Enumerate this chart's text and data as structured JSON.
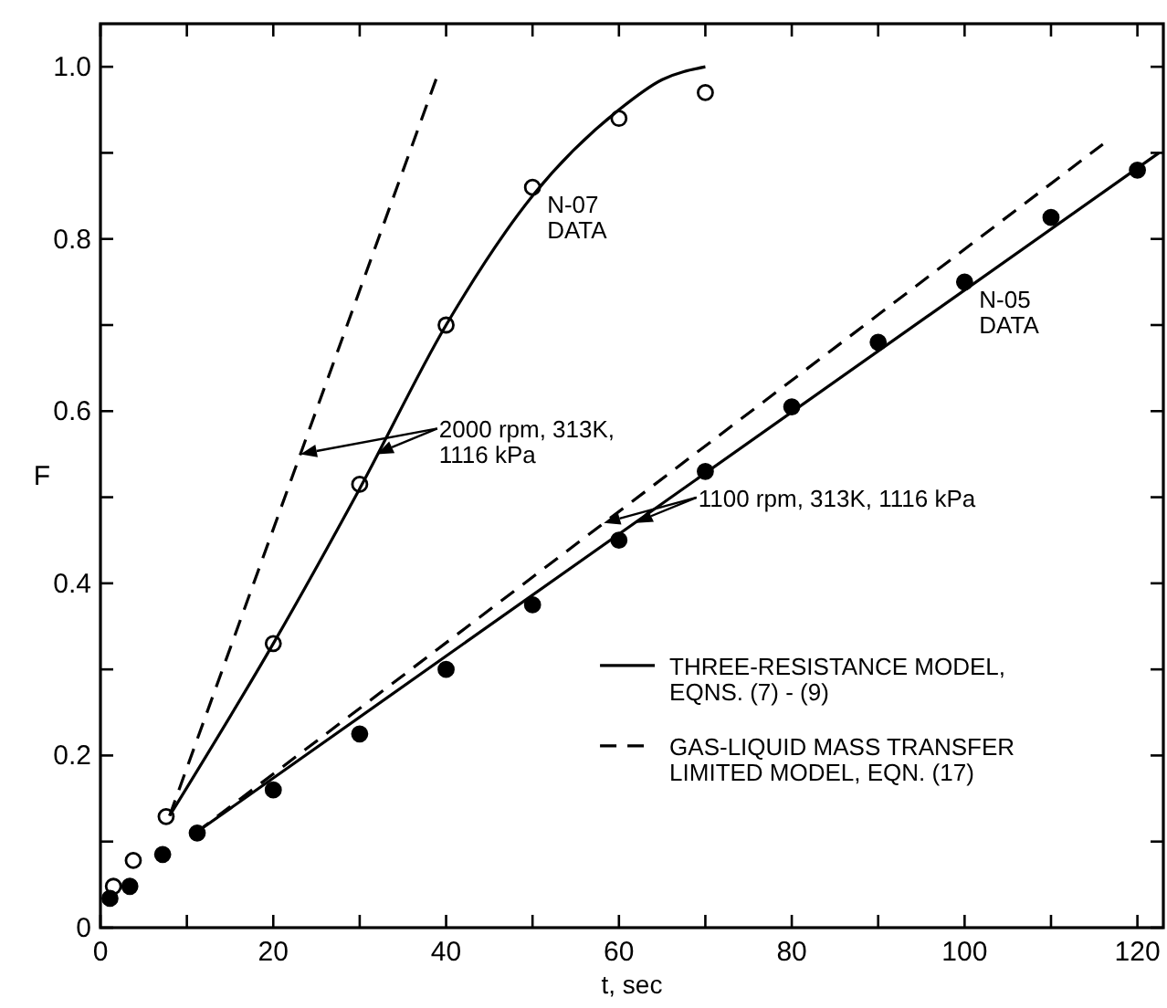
{
  "chart_data": {
    "type": "line",
    "xlabel": "t, sec",
    "ylabel": "F",
    "xlim": [
      0,
      123
    ],
    "ylim": [
      0,
      1.05
    ],
    "xticks": [
      0,
      {
        "value": 10,
        "label": null
      },
      20,
      {
        "value": 30,
        "label": null
      },
      40,
      {
        "value": 50,
        "label": null
      },
      60,
      {
        "value": 70,
        "label": null
      },
      80,
      {
        "value": 90,
        "label": null
      },
      100,
      {
        "value": 110,
        "label": null
      },
      120
    ],
    "yticks": [
      0,
      {
        "value": 0.1,
        "label": null
      },
      0.2,
      {
        "value": 0.3,
        "label": null
      },
      0.4,
      {
        "value": 0.5,
        "label": null
      },
      0.6,
      {
        "value": 0.7,
        "label": null
      },
      0.8,
      {
        "value": 0.9,
        "label": null
      },
      {
        "value": 1.0,
        "label": "1.0"
      }
    ],
    "grid": false,
    "legend": "bottom right",
    "series": [
      {
        "type": "scatter",
        "marker": "circle",
        "color": "#ffffff",
        "x": [
          1.5,
          3.8,
          7.6,
          20,
          30,
          40,
          50,
          60,
          70
        ],
        "values": [
          0.048,
          0.078,
          0.129,
          0.33,
          0.515,
          0.7,
          0.86,
          0.94,
          0.97
        ]
      },
      {
        "type": "scatter",
        "marker": "circle",
        "color": "#000000",
        "x": [
          1.1,
          3.4,
          7.2,
          11.2,
          20,
          30,
          40,
          50,
          60,
          70,
          80,
          90,
          100,
          110,
          120
        ],
        "values": [
          0.034,
          0.048,
          0.085,
          0.11,
          0.16,
          0.225,
          0.3,
          0.375,
          0.45,
          0.53,
          0.605,
          0.68,
          0.75,
          0.825,
          0.88
        ]
      },
      {
        "name": "THREE-RESISTANCE MODEL,\nEQNS. (7) - (9)",
        "line_style": "solid",
        "color": "#000000",
        "x": [
          8,
          20,
          30,
          40,
          50,
          60,
          65,
          70
        ],
        "values": [
          0.13,
          0.33,
          0.51,
          0.7,
          0.85,
          0.95,
          0.985,
          1.0
        ]
      },
      {
        "line_style": "solid",
        "color": "#000000",
        "x": [
          11,
          122.5
        ],
        "values": [
          0.11,
          0.9
        ]
      },
      {
        "name": "GAS-LIQUID MASS TRANSFER\nLIMITED MODEL, EQN. (17)",
        "line_style": "dashed",
        "color": "#000000",
        "x": [
          8,
          39
        ],
        "values": [
          0.13,
          0.99
        ]
      },
      {
        "line_style": "dashed",
        "color": "#000000",
        "x": [
          11,
          116
        ],
        "values": [
          0.11,
          0.91
        ]
      }
    ],
    "annotations": [
      {
        "text": "N-07\nDATA",
        "x": 50,
        "y": 0.86
      },
      {
        "text": "N-05\nDATA",
        "x": 100,
        "y": 0.75
      },
      {
        "text": "2000 rpm, 313K,\n1116 kPa",
        "x": 32,
        "y": 0.55
      },
      {
        "text": "1100 rpm, 313K, 1116 kPa",
        "x": 62,
        "y": 0.47
      }
    ]
  }
}
